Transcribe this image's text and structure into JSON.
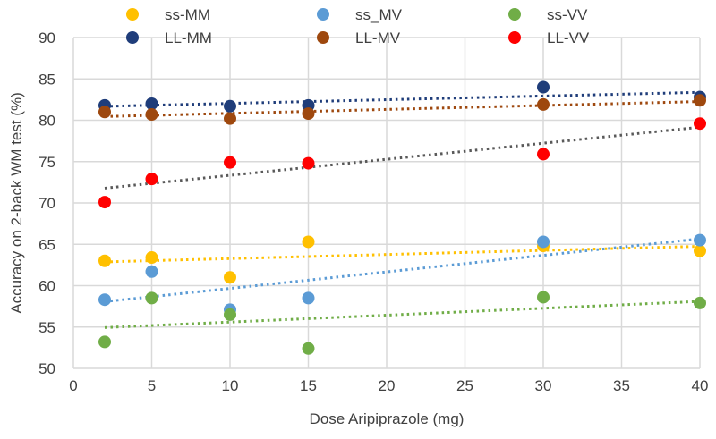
{
  "chart_data": {
    "type": "scatter",
    "title": "",
    "xlabel": "Dose Aripiprazole (mg)",
    "ylabel": "Accuracy on 2-back WM test (%)",
    "xlim": [
      0,
      40
    ],
    "ylim": [
      50,
      90
    ],
    "xticks": [
      "0",
      "5",
      "10",
      "15",
      "20",
      "25",
      "30",
      "35",
      "40"
    ],
    "yticks": [
      "50",
      "55",
      "60",
      "65",
      "70",
      "75",
      "80",
      "85",
      "90"
    ],
    "grid": true,
    "legend_position": "top",
    "x": [
      2,
      5,
      10,
      15,
      30,
      40
    ],
    "series": [
      {
        "name": "ss-MM",
        "color": "#FFC000",
        "trend_color": "#FFC000",
        "values": [
          63.0,
          63.4,
          61.0,
          65.3,
          64.8,
          64.2
        ]
      },
      {
        "name": "ss_MV",
        "color": "#5B9BD5",
        "trend_color": "#5B9BD5",
        "values": [
          58.3,
          61.7,
          57.1,
          58.5,
          65.3,
          65.5
        ]
      },
      {
        "name": "ss-VV",
        "color": "#70AD47",
        "trend_color": "#70AD47",
        "values": [
          53.2,
          58.5,
          56.5,
          52.4,
          58.6,
          57.9
        ]
      },
      {
        "name": "LL-MM",
        "color": "#1F3D7A",
        "trend_color": "#1F3D7A",
        "values": [
          81.8,
          82.0,
          81.7,
          81.8,
          84.0,
          82.8
        ]
      },
      {
        "name": "LL-MV",
        "color": "#9E480E",
        "trend_color": "#9E480E",
        "values": [
          81.0,
          80.7,
          80.2,
          80.8,
          81.9,
          82.4
        ]
      },
      {
        "name": "LL-VV",
        "color": "#FF0000",
        "trend_color": "#595959",
        "values": [
          70.1,
          72.9,
          74.9,
          74.8,
          75.9,
          79.6
        ]
      }
    ]
  }
}
